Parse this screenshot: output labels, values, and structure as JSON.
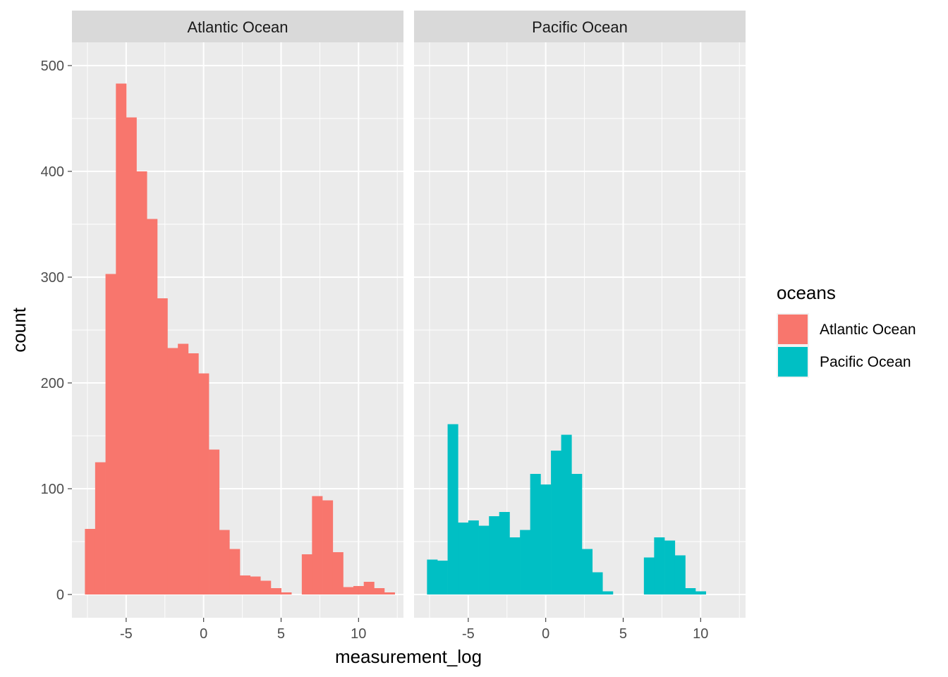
{
  "chart_data": {
    "type": "bar",
    "subtype": "faceted histogram",
    "xlabel": "measurement_log",
    "ylabel": "count",
    "xlim": [
      -8.5,
      12.9
    ],
    "ylim": [
      -22,
      522
    ],
    "x_ticks": [
      -5,
      0,
      5,
      10
    ],
    "y_ticks": [
      0,
      100,
      200,
      300,
      400,
      500
    ],
    "bin_width": 0.6667,
    "grid": true,
    "legend": {
      "title": "oceans",
      "placement": "right",
      "entries": [
        {
          "label": "Atlantic Ocean",
          "color": "#F8766D"
        },
        {
          "label": "Pacific Ocean",
          "color": "#00BFC4"
        }
      ]
    },
    "facets": [
      {
        "label": "Atlantic Ocean",
        "color": "#F8766D",
        "bins": [
          {
            "x": -7.33,
            "count": 62
          },
          {
            "x": -6.67,
            "count": 125
          },
          {
            "x": -6.0,
            "count": 303
          },
          {
            "x": -5.33,
            "count": 483
          },
          {
            "x": -4.67,
            "count": 451
          },
          {
            "x": -4.0,
            "count": 400
          },
          {
            "x": -3.33,
            "count": 355
          },
          {
            "x": -2.67,
            "count": 280
          },
          {
            "x": -2.0,
            "count": 233
          },
          {
            "x": -1.33,
            "count": 237
          },
          {
            "x": -0.67,
            "count": 228
          },
          {
            "x": 0.0,
            "count": 209
          },
          {
            "x": 0.67,
            "count": 137
          },
          {
            "x": 1.33,
            "count": 61
          },
          {
            "x": 2.0,
            "count": 43
          },
          {
            "x": 2.67,
            "count": 18
          },
          {
            "x": 3.33,
            "count": 17
          },
          {
            "x": 4.0,
            "count": 13
          },
          {
            "x": 4.67,
            "count": 6
          },
          {
            "x": 5.33,
            "count": 2
          },
          {
            "x": 6.0,
            "count": 0
          },
          {
            "x": 6.67,
            "count": 38
          },
          {
            "x": 7.33,
            "count": 93
          },
          {
            "x": 8.0,
            "count": 89
          },
          {
            "x": 8.67,
            "count": 40
          },
          {
            "x": 9.33,
            "count": 7
          },
          {
            "x": 10.0,
            "count": 8
          },
          {
            "x": 10.67,
            "count": 12
          },
          {
            "x": 11.33,
            "count": 6
          },
          {
            "x": 12.0,
            "count": 2
          }
        ]
      },
      {
        "label": "Pacific Ocean",
        "color": "#00BFC4",
        "bins": [
          {
            "x": -7.33,
            "count": 33
          },
          {
            "x": -6.67,
            "count": 32
          },
          {
            "x": -6.0,
            "count": 161
          },
          {
            "x": -5.33,
            "count": 68
          },
          {
            "x": -4.67,
            "count": 70
          },
          {
            "x": -4.0,
            "count": 65
          },
          {
            "x": -3.33,
            "count": 74
          },
          {
            "x": -2.67,
            "count": 78
          },
          {
            "x": -2.0,
            "count": 54
          },
          {
            "x": -1.33,
            "count": 61
          },
          {
            "x": -0.67,
            "count": 114
          },
          {
            "x": 0.0,
            "count": 104
          },
          {
            "x": 0.67,
            "count": 136
          },
          {
            "x": 1.33,
            "count": 151
          },
          {
            "x": 2.0,
            "count": 114
          },
          {
            "x": 2.67,
            "count": 43
          },
          {
            "x": 3.33,
            "count": 21
          },
          {
            "x": 4.0,
            "count": 3
          },
          {
            "x": 4.67,
            "count": 0
          },
          {
            "x": 5.33,
            "count": 0
          },
          {
            "x": 6.0,
            "count": 0
          },
          {
            "x": 6.67,
            "count": 35
          },
          {
            "x": 7.33,
            "count": 54
          },
          {
            "x": 8.0,
            "count": 51
          },
          {
            "x": 8.67,
            "count": 37
          },
          {
            "x": 9.33,
            "count": 6
          },
          {
            "x": 10.0,
            "count": 3
          }
        ]
      }
    ]
  }
}
